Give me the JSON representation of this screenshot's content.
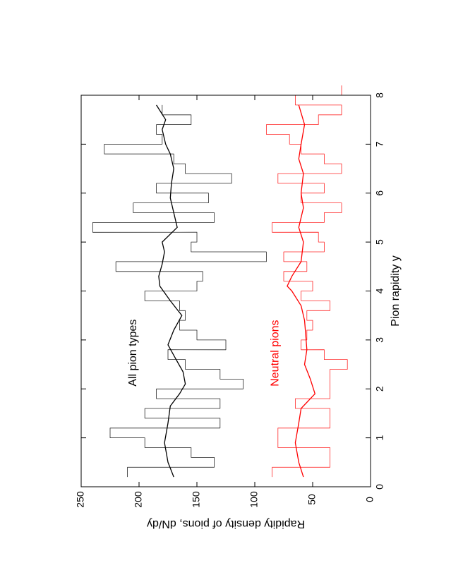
{
  "chart_data": {
    "type": "line",
    "orientation": "rotated-90-clockwise",
    "xlabel": "Pion rapidity y",
    "ylabel": "Rapidity density of pions, dN/dy",
    "xlim": [
      0,
      8
    ],
    "ylim": [
      0,
      250
    ],
    "x_ticks": [
      0,
      1,
      2,
      3,
      4,
      5,
      6,
      7,
      8
    ],
    "y_ticks": [
      0,
      50,
      100,
      150,
      200,
      250
    ],
    "grid": false,
    "legend": "none",
    "annotations": [
      {
        "text": "All pion types",
        "color": "#000000",
        "x": 2.05,
        "y": 205
      },
      {
        "text": "Neutral pions",
        "color": "#ff0000",
        "x": 2.05,
        "y": 82
      }
    ],
    "series": [
      {
        "style": "histogram",
        "color": "#000000",
        "bin_width": 0.2,
        "x_start": 0.2,
        "values": [
          210,
          135,
          155,
          195,
          225,
          130,
          195,
          130,
          185,
          110,
          130,
          160,
          175,
          125,
          150,
          165,
          160,
          165,
          195,
          150,
          145,
          220,
          90,
          155,
          150,
          240,
          135,
          205,
          140,
          185,
          120,
          160,
          170,
          230,
          180,
          185,
          155,
          180
        ]
      },
      {
        "style": "smooth",
        "color": "#000000",
        "x": [
          0.2,
          0.5,
          0.9,
          1.3,
          1.65,
          1.9,
          2.1,
          2.35,
          2.6,
          2.9,
          3.2,
          3.5,
          3.8,
          4.1,
          4.3,
          4.55,
          4.8,
          5.0,
          5.3,
          5.6,
          5.9,
          6.2,
          6.5,
          6.8,
          7.0,
          7.3,
          7.5,
          7.8
        ],
        "values": [
          170,
          175,
          178,
          175,
          173,
          165,
          160,
          162,
          168,
          175,
          170,
          163,
          173,
          182,
          183,
          180,
          178,
          180,
          167,
          170,
          173,
          172,
          170,
          173,
          177,
          180,
          177,
          185
        ]
      },
      {
        "style": "histogram",
        "color": "#ff0000",
        "bin_width": 0.2,
        "x_start": 0.2,
        "values": [
          85,
          35,
          35,
          80,
          80,
          35,
          35,
          65,
          35,
          35,
          35,
          20,
          40,
          60,
          55,
          50,
          55,
          35,
          60,
          50,
          75,
          55,
          75,
          40,
          45,
          85,
          40,
          25,
          60,
          40,
          80,
          25,
          40,
          60,
          70,
          90,
          45,
          25,
          65,
          25
        ]
      },
      {
        "style": "smooth",
        "color": "#ff0000",
        "x": [
          0.2,
          0.5,
          0.9,
          1.3,
          1.6,
          1.9,
          2.2,
          2.5,
          2.8,
          3.1,
          3.4,
          3.7,
          4.0,
          4.1,
          4.3,
          4.6,
          5.0,
          5.3,
          5.7,
          6.0,
          6.4,
          6.7,
          7.0,
          7.4,
          7.8
        ],
        "values": [
          58,
          62,
          65,
          62,
          60,
          48,
          52,
          57,
          55,
          56,
          57,
          60,
          68,
          72,
          68,
          60,
          58,
          62,
          58,
          60,
          58,
          62,
          60,
          57,
          62
        ]
      }
    ]
  }
}
